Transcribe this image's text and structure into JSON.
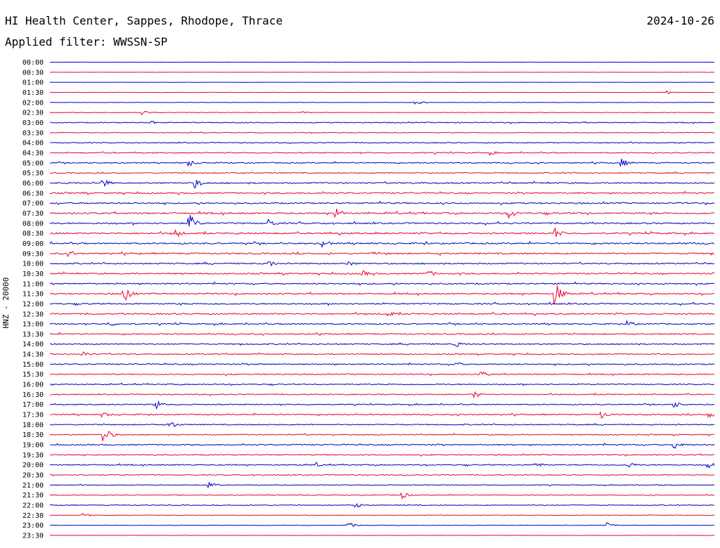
{
  "header": {
    "station": "HI Health Center, Sappes, Rhodope, Thrace",
    "filter": "Applied filter: WWSSN-SP",
    "date": "2024-10-26"
  },
  "chart_data": {
    "type": "line",
    "title": "HI Health Center, Sappes, Rhodope, Thrace",
    "subtitle": "Applied filter: WWSSN-SP",
    "date": "2024-10-26",
    "ylabel": "HNZ - 20000",
    "xlabel": "",
    "colors": [
      "#0000cc",
      "#ee0033"
    ],
    "rows": [
      "00:00",
      "00:30",
      "01:00",
      "01:30",
      "02:00",
      "02:30",
      "03:00",
      "03:30",
      "04:00",
      "04:30",
      "05:00",
      "05:30",
      "06:00",
      "06:30",
      "07:00",
      "07:30",
      "08:00",
      "08:30",
      "09:00",
      "09:30",
      "10:00",
      "10:30",
      "11:00",
      "11:30",
      "12:00",
      "12:30",
      "13:00",
      "13:30",
      "14:00",
      "14:30",
      "15:00",
      "15:30",
      "16:00",
      "16:30",
      "17:00",
      "17:30",
      "18:00",
      "18:30",
      "19:00",
      "19:30",
      "20:00",
      "20:30",
      "21:00",
      "21:30",
      "22:00",
      "22:30",
      "23:00",
      "23:30"
    ],
    "activity": [
      0,
      0,
      0,
      0.1,
      0.1,
      0.2,
      0.5,
      0.4,
      0.5,
      0.6,
      0.6,
      0.6,
      0.8,
      0.8,
      0.8,
      0.9,
      0.9,
      0.9,
      0.9,
      0.9,
      0.8,
      0.8,
      0.8,
      0.8,
      0.8,
      0.8,
      0.7,
      0.7,
      0.7,
      0.6,
      0.7,
      0.6,
      0.6,
      0.6,
      0.6,
      0.7,
      0.6,
      0.6,
      0.7,
      0.6,
      0.6,
      0.5,
      0.4,
      0.4,
      0.4,
      0.3,
      0.2,
      0.1
    ],
    "events": [
      {
        "row": "01:30",
        "x": 0.93,
        "amp": 0.3
      },
      {
        "row": "02:00",
        "x": 0.55,
        "amp": 0.4
      },
      {
        "row": "02:30",
        "x": 0.14,
        "amp": 0.4
      },
      {
        "row": "02:30",
        "x": 0.38,
        "amp": 0.3
      },
      {
        "row": "03:00",
        "x": 0.15,
        "amp": 0.5
      },
      {
        "row": "04:30",
        "x": 0.66,
        "amp": 0.5
      },
      {
        "row": "05:00",
        "x": 0.21,
        "amp": 0.6
      },
      {
        "row": "05:00",
        "x": 0.86,
        "amp": 0.8
      },
      {
        "row": "06:00",
        "x": 0.08,
        "amp": 0.8
      },
      {
        "row": "06:00",
        "x": 0.22,
        "amp": 0.9
      },
      {
        "row": "07:30",
        "x": 0.43,
        "amp": 1.0
      },
      {
        "row": "07:30",
        "x": 0.69,
        "amp": 1.1
      },
      {
        "row": "08:00",
        "x": 0.21,
        "amp": 1.6
      },
      {
        "row": "08:00",
        "x": 0.33,
        "amp": 0.8
      },
      {
        "row": "08:30",
        "x": 0.19,
        "amp": 0.8
      },
      {
        "row": "08:30",
        "x": 0.76,
        "amp": 1.0
      },
      {
        "row": "09:00",
        "x": 0.41,
        "amp": 0.8
      },
      {
        "row": "09:30",
        "x": 0.03,
        "amp": 0.6
      },
      {
        "row": "10:00",
        "x": 0.33,
        "amp": 0.6
      },
      {
        "row": "10:00",
        "x": 0.45,
        "amp": 0.5
      },
      {
        "row": "10:30",
        "x": 0.47,
        "amp": 0.6
      },
      {
        "row": "10:30",
        "x": 0.57,
        "amp": 0.6
      },
      {
        "row": "11:30",
        "x": 0.11,
        "amp": 1.8
      },
      {
        "row": "11:30",
        "x": 0.76,
        "amp": 2.0
      },
      {
        "row": "12:30",
        "x": 0.51,
        "amp": 0.5
      },
      {
        "row": "13:00",
        "x": 0.09,
        "amp": 0.5
      },
      {
        "row": "13:00",
        "x": 0.87,
        "amp": 0.6
      },
      {
        "row": "14:00",
        "x": 0.61,
        "amp": 0.6
      },
      {
        "row": "14:30",
        "x": 0.05,
        "amp": 0.6
      },
      {
        "row": "15:00",
        "x": 0.61,
        "amp": 0.5
      },
      {
        "row": "15:30",
        "x": 0.65,
        "amp": 0.5
      },
      {
        "row": "16:30",
        "x": 0.64,
        "amp": 0.6
      },
      {
        "row": "17:00",
        "x": 0.16,
        "amp": 0.8
      },
      {
        "row": "17:00",
        "x": 0.94,
        "amp": 0.6
      },
      {
        "row": "17:30",
        "x": 0.08,
        "amp": 0.5
      },
      {
        "row": "17:30",
        "x": 0.83,
        "amp": 0.7
      },
      {
        "row": "17:30",
        "x": 0.99,
        "amp": 0.6
      },
      {
        "row": "18:00",
        "x": 0.18,
        "amp": 0.8
      },
      {
        "row": "18:30",
        "x": 0.08,
        "amp": 1.6
      },
      {
        "row": "19:00",
        "x": 0.94,
        "amp": 0.8
      },
      {
        "row": "20:00",
        "x": 0.4,
        "amp": 0.5
      },
      {
        "row": "20:00",
        "x": 0.73,
        "amp": 0.6
      },
      {
        "row": "20:00",
        "x": 0.87,
        "amp": 0.6
      },
      {
        "row": "20:00",
        "x": 0.99,
        "amp": 0.6
      },
      {
        "row": "21:00",
        "x": 0.24,
        "amp": 0.6
      },
      {
        "row": "21:30",
        "x": 0.53,
        "amp": 0.6
      },
      {
        "row": "22:00",
        "x": 0.46,
        "amp": 0.5
      },
      {
        "row": "22:30",
        "x": 0.05,
        "amp": 0.4
      },
      {
        "row": "23:00",
        "x": 0.45,
        "amp": 0.5
      },
      {
        "row": "23:00",
        "x": 0.84,
        "amp": 0.5
      }
    ]
  }
}
